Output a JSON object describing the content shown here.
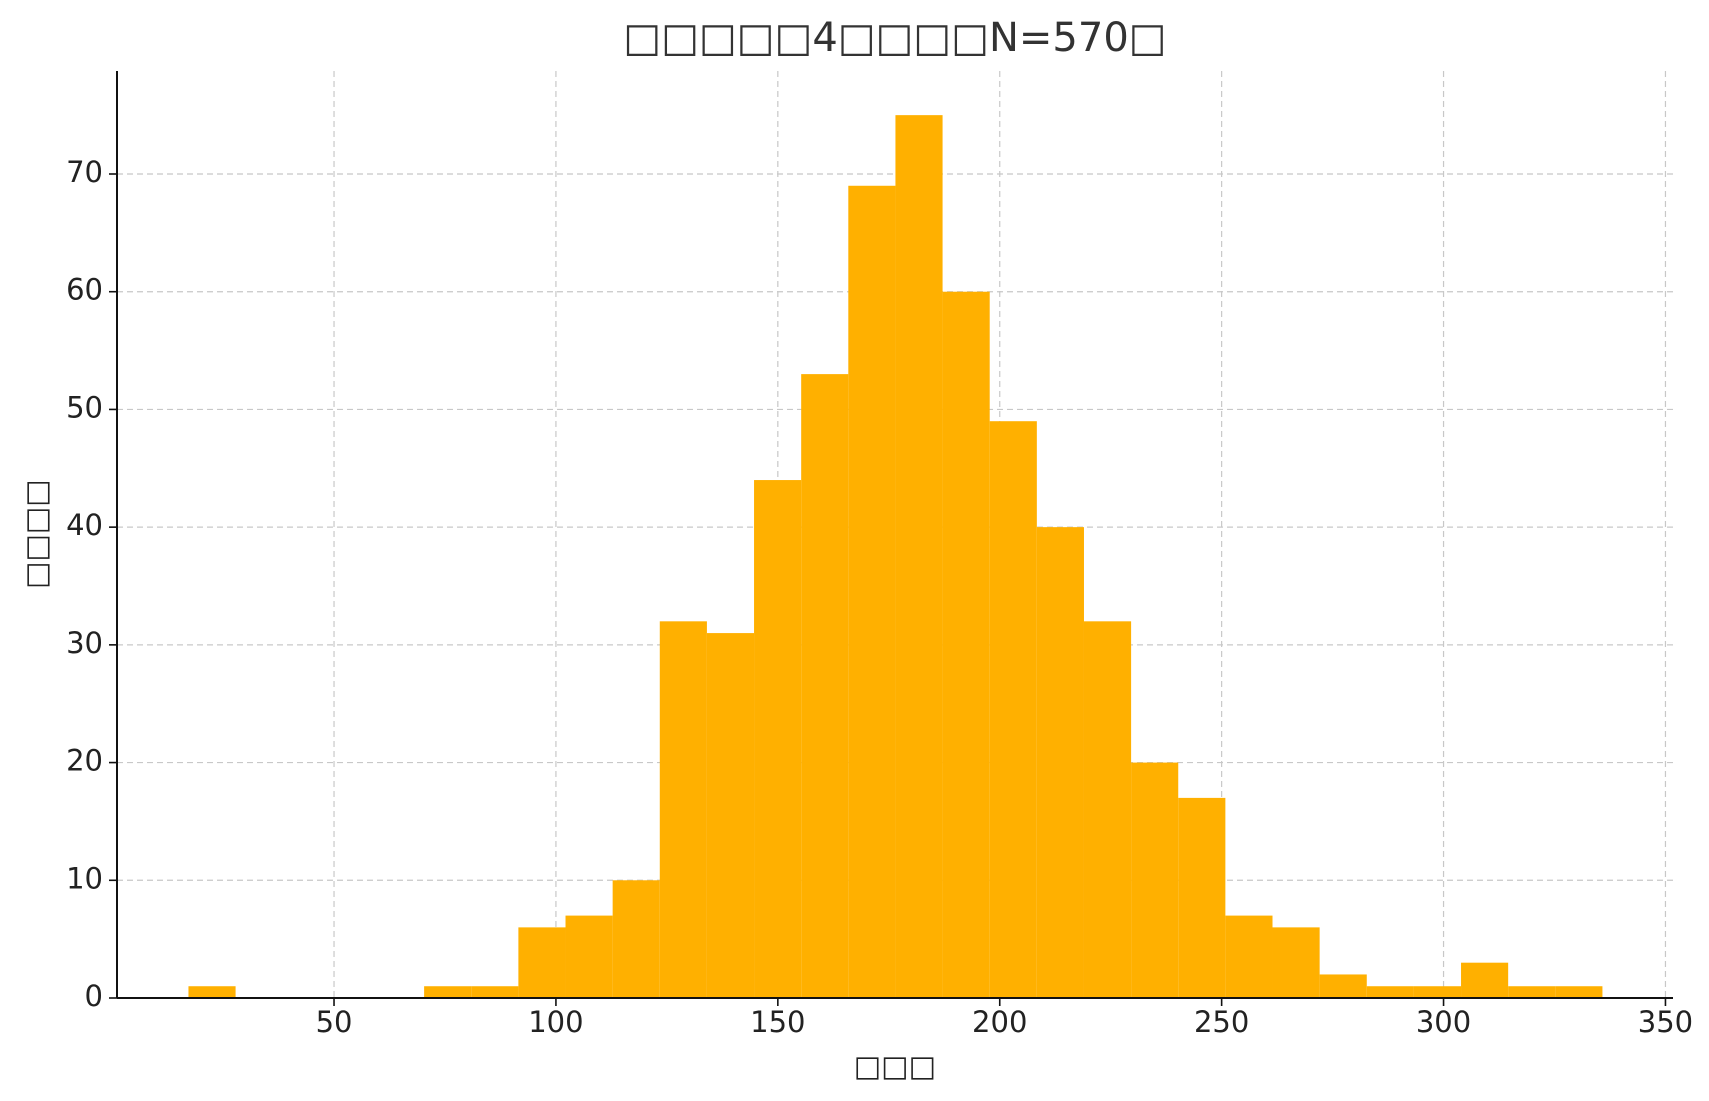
{
  "chart_data": {
    "type": "histogram",
    "title": "□□□□□4□□□□N=570□",
    "x_label": "□□□",
    "y_label": "□□□□",
    "bins": [
      17.2,
      27.82,
      38.44,
      49.06,
      59.68,
      70.3,
      80.92,
      91.54,
      102.16,
      112.78,
      123.4,
      134.02,
      144.64,
      155.26,
      165.88,
      176.5,
      187.12,
      197.74,
      208.36,
      218.98,
      229.6,
      240.22,
      250.84,
      261.46,
      272.08,
      282.7,
      293.32,
      303.94,
      314.56,
      325.18,
      335.8
    ],
    "values": [
      1,
      0,
      0,
      0,
      0,
      1,
      1,
      6,
      7,
      10,
      32,
      31,
      44,
      53,
      69,
      75,
      60,
      49,
      40,
      32,
      20,
      17,
      7,
      6,
      2,
      1,
      1,
      3,
      1,
      1
    ],
    "color": "#ffb000",
    "xlim": [
      1.1,
      351.7
    ],
    "ylim": [
      0,
      78.75
    ],
    "xticks": [
      50,
      100,
      150,
      200,
      250,
      300,
      350
    ],
    "yticks": [
      0,
      10,
      20,
      30,
      40,
      50,
      60,
      70
    ],
    "grid": true
  }
}
